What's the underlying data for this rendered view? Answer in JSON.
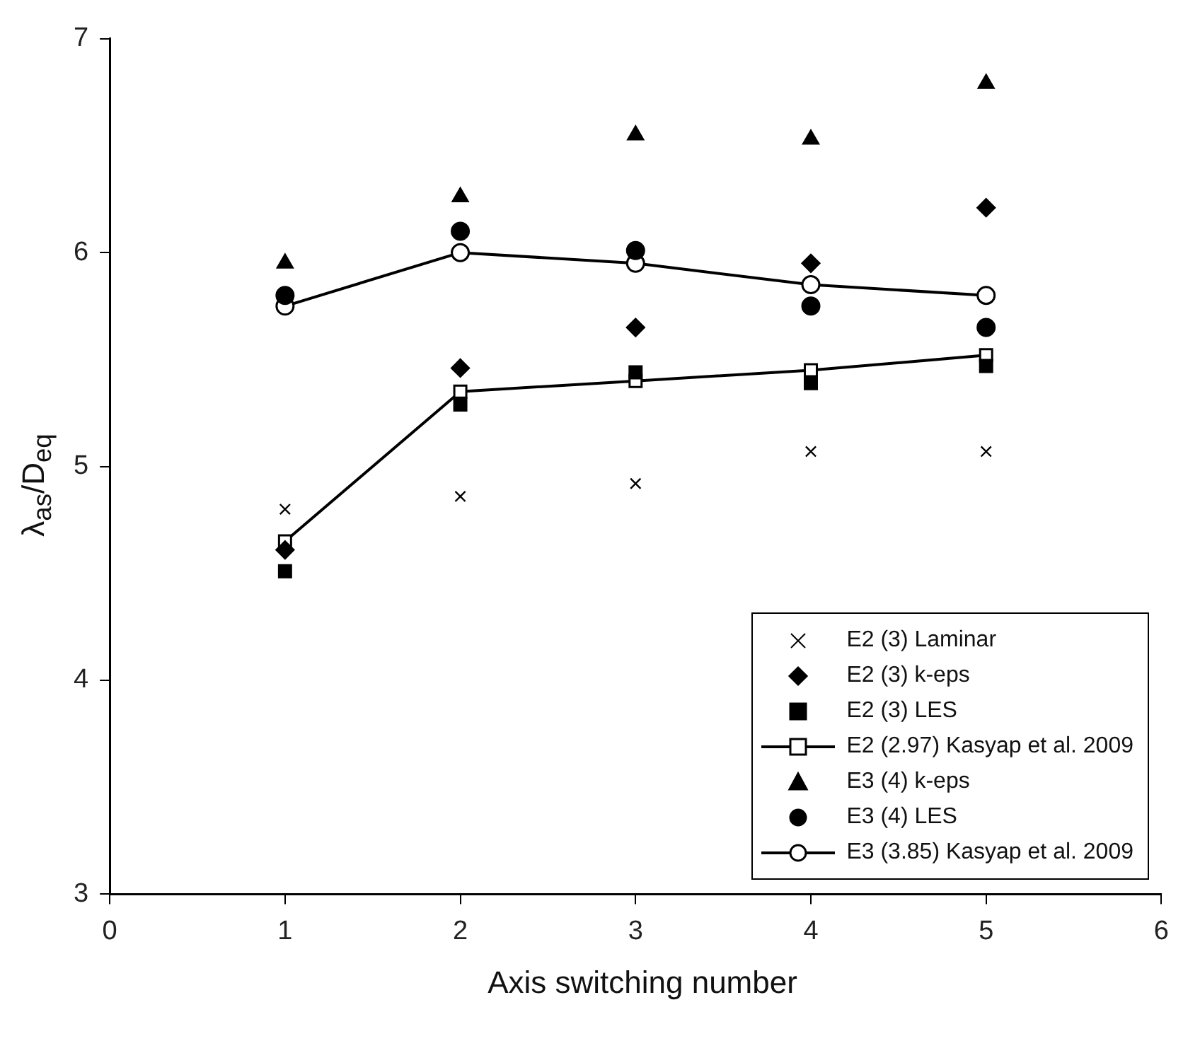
{
  "chart_data": {
    "type": "scatter",
    "xlabel": "Axis switching number",
    "ylabel": "λ$_{as}$/D$_{eq}$",
    "xlim": [
      0,
      6
    ],
    "xticks": [
      0,
      1,
      2,
      3,
      4,
      5,
      6
    ],
    "ylim": [
      3,
      7
    ],
    "yticks": [
      3,
      4,
      5,
      6,
      7
    ],
    "grid": false,
    "legend": "bottom right",
    "x": [
      1,
      2,
      3,
      4,
      5
    ],
    "series": [
      {
        "name": "E2 (3) Laminar",
        "color": "#000000",
        "marker": "cross",
        "values": [
          4.8,
          4.86,
          4.92,
          5.07,
          5.07
        ]
      },
      {
        "name": "E2 (3) k-eps",
        "color": "#000000",
        "marker": "diamond",
        "values": [
          4.61,
          5.46,
          5.65,
          5.95,
          6.21
        ]
      },
      {
        "name": "E2 (3) LES",
        "color": "#000000",
        "marker": "square",
        "values": [
          4.51,
          5.29,
          5.44,
          5.39,
          5.47
        ]
      },
      {
        "name": "E2 (2.97) Kasyap et al. 2009",
        "type": "line",
        "color": "#000000",
        "marker": "square",
        "line_style": "solid",
        "values": [
          4.65,
          5.35,
          5.4,
          5.45,
          5.52
        ]
      },
      {
        "name": "E3 (4) k-eps",
        "color": "#000000",
        "marker": "triangle",
        "values": [
          5.95,
          6.26,
          6.55,
          6.53,
          6.79
        ]
      },
      {
        "name": "E3 (4) LES",
        "color": "#000000",
        "marker": "circle",
        "values": [
          5.8,
          6.1,
          6.01,
          5.75,
          5.65
        ]
      },
      {
        "name": "E3 (3.85) Kasyap et al. 2009",
        "type": "line",
        "color": "#000000",
        "marker": "circle",
        "line_style": "solid",
        "values": [
          5.75,
          6.0,
          5.95,
          5.85,
          5.8
        ]
      }
    ]
  }
}
